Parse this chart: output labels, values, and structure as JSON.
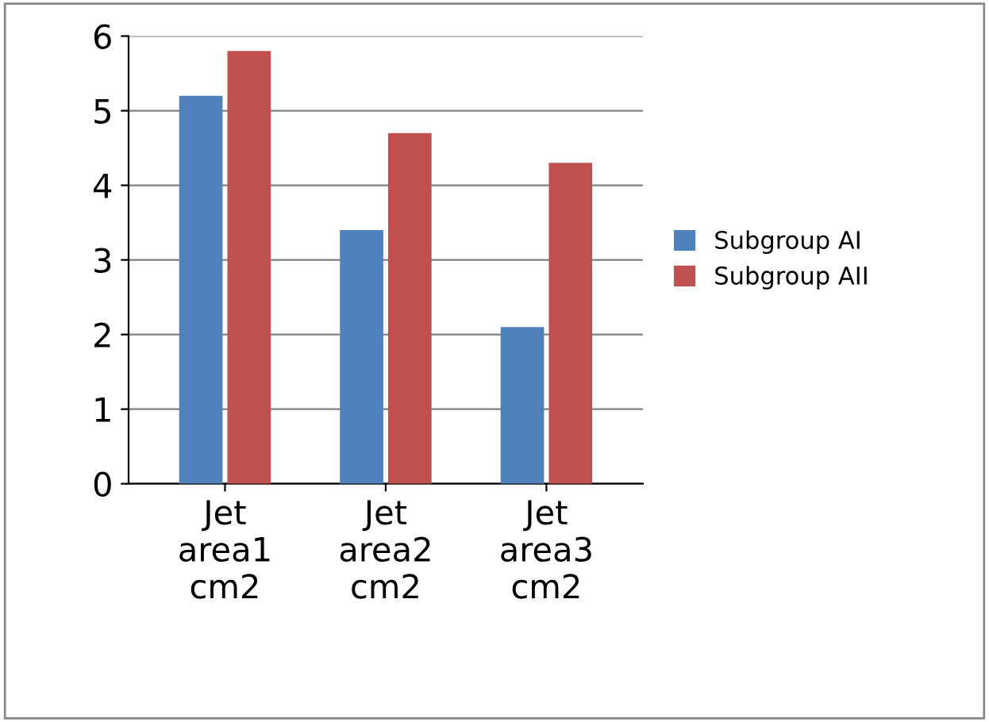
{
  "chart_data": {
    "type": "bar",
    "categories": [
      "Jet\narea1\ncm2",
      "Jet\narea2\ncm2",
      "Jet\narea3\ncm2"
    ],
    "series": [
      {
        "name": "Subgroup AI",
        "color": "#4f81bd",
        "values": [
          5.2,
          3.4,
          2.1
        ]
      },
      {
        "name": "Subgroup AII",
        "color": "#c0504d",
        "values": [
          5.8,
          4.7,
          4.3
        ]
      }
    ],
    "ylim": [
      0,
      6
    ],
    "yticks": [
      0,
      1,
      2,
      3,
      4,
      5,
      6
    ],
    "grid": "y",
    "legend": "right"
  }
}
